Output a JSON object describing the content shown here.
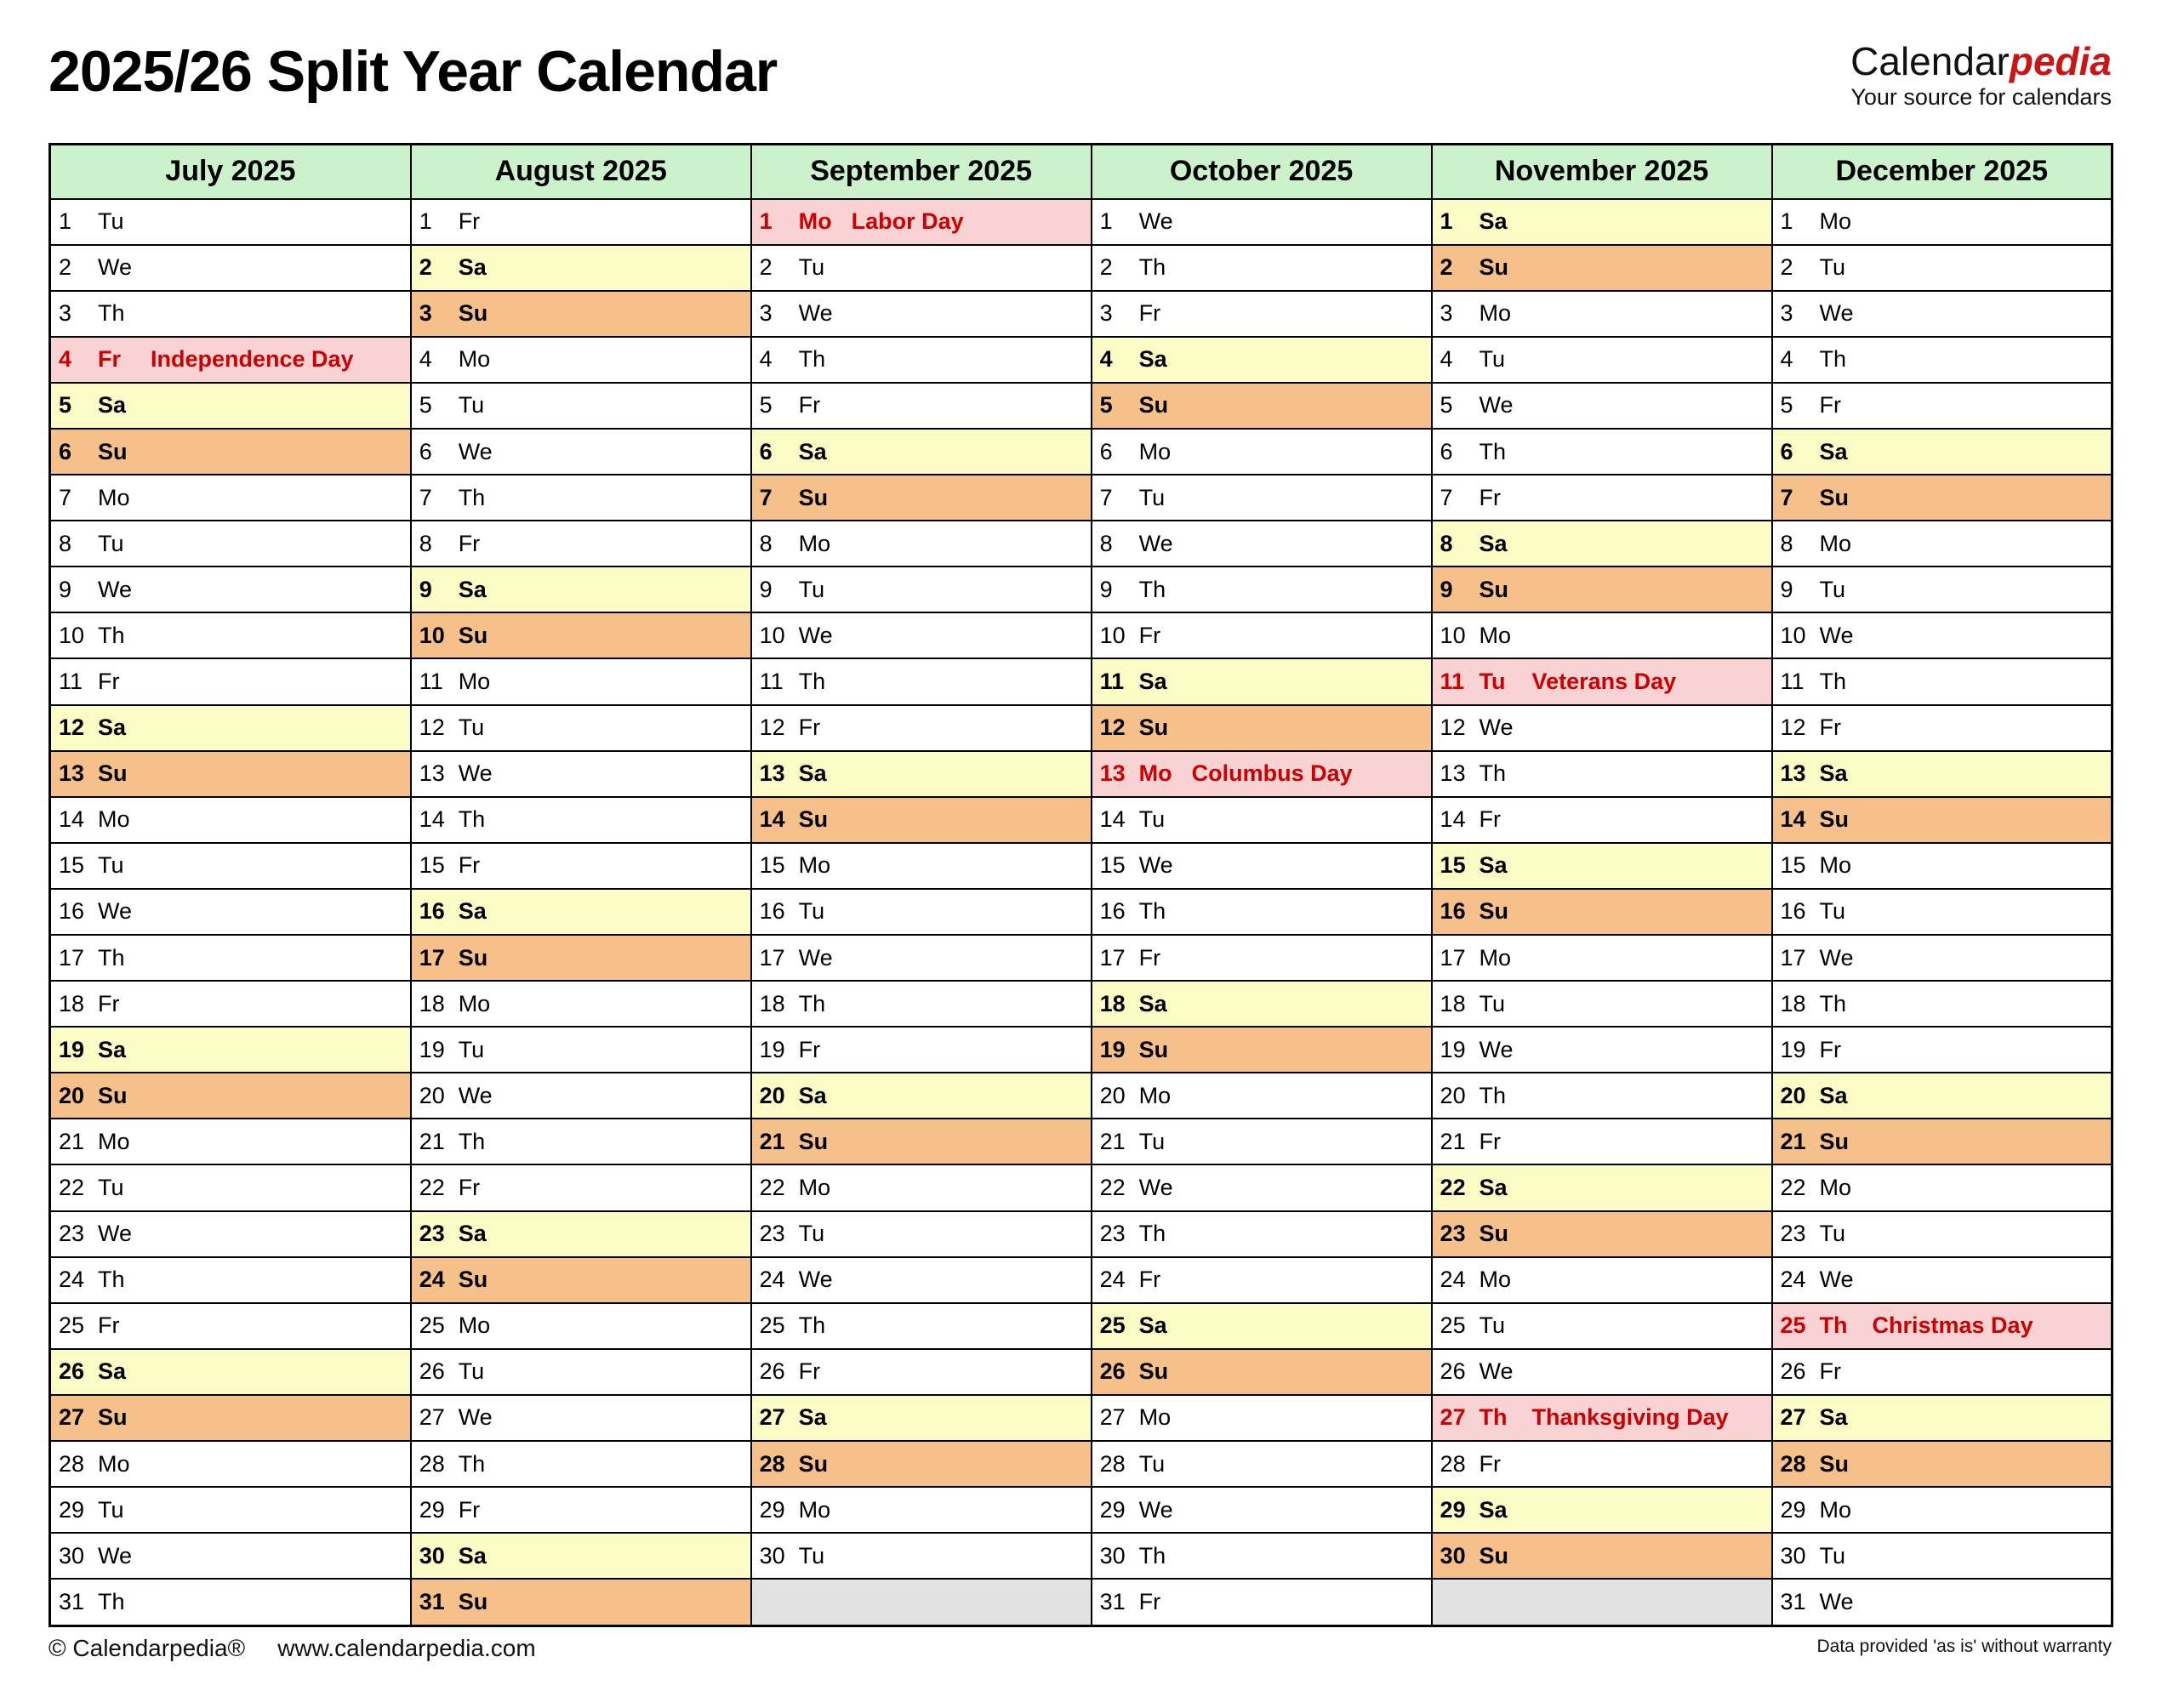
{
  "header": {
    "title": "2025/26 Split Year Calendar",
    "logo": {
      "part1": "Calendar",
      "part2": "pedia",
      "tagline": "Your source for calendars"
    }
  },
  "calendar": {
    "months": [
      {
        "name": "July 2025",
        "weekdays": [
          "Tu",
          "We",
          "Th",
          "Fr",
          "Sa",
          "Su",
          "Mo",
          "Tu",
          "We",
          "Th",
          "Fr",
          "Sa",
          "Su",
          "Mo",
          "Tu",
          "We",
          "Th",
          "Fr",
          "Sa",
          "Su",
          "Mo",
          "Tu",
          "We",
          "Th",
          "Fr",
          "Sa",
          "Su",
          "Mo",
          "Tu",
          "We",
          "Th"
        ],
        "holidays": {
          "4": "Independence Day"
        }
      },
      {
        "name": "August 2025",
        "weekdays": [
          "Fr",
          "Sa",
          "Su",
          "Mo",
          "Tu",
          "We",
          "Th",
          "Fr",
          "Sa",
          "Su",
          "Mo",
          "Tu",
          "We",
          "Th",
          "Fr",
          "Sa",
          "Su",
          "Mo",
          "Tu",
          "We",
          "Th",
          "Fr",
          "Sa",
          "Su",
          "Mo",
          "Tu",
          "We",
          "Th",
          "Fr",
          "Sa",
          "Su"
        ],
        "holidays": {}
      },
      {
        "name": "September 2025",
        "weekdays": [
          "Mo",
          "Tu",
          "We",
          "Th",
          "Fr",
          "Sa",
          "Su",
          "Mo",
          "Tu",
          "We",
          "Th",
          "Fr",
          "Sa",
          "Su",
          "Mo",
          "Tu",
          "We",
          "Th",
          "Fr",
          "Sa",
          "Su",
          "Mo",
          "Tu",
          "We",
          "Th",
          "Fr",
          "Sa",
          "Su",
          "Mo",
          "Tu"
        ],
        "holidays": {
          "1": "Labor Day"
        }
      },
      {
        "name": "October 2025",
        "weekdays": [
          "We",
          "Th",
          "Fr",
          "Sa",
          "Su",
          "Mo",
          "Tu",
          "We",
          "Th",
          "Fr",
          "Sa",
          "Su",
          "Mo",
          "Tu",
          "We",
          "Th",
          "Fr",
          "Sa",
          "Su",
          "Mo",
          "Tu",
          "We",
          "Th",
          "Fr",
          "Sa",
          "Su",
          "Mo",
          "Tu",
          "We",
          "Th",
          "Fr"
        ],
        "holidays": {
          "13": "Columbus Day"
        }
      },
      {
        "name": "November 2025",
        "weekdays": [
          "Sa",
          "Su",
          "Mo",
          "Tu",
          "We",
          "Th",
          "Fr",
          "Sa",
          "Su",
          "Mo",
          "Tu",
          "We",
          "Th",
          "Fr",
          "Sa",
          "Su",
          "Mo",
          "Tu",
          "We",
          "Th",
          "Fr",
          "Sa",
          "Su",
          "Mo",
          "Tu",
          "We",
          "Th",
          "Fr",
          "Sa",
          "Su"
        ],
        "holidays": {
          "11": "Veterans Day",
          "27": "Thanksgiving Day"
        }
      },
      {
        "name": "December 2025",
        "weekdays": [
          "Mo",
          "Tu",
          "We",
          "Th",
          "Fr",
          "Sa",
          "Su",
          "Mo",
          "Tu",
          "We",
          "Th",
          "Fr",
          "Sa",
          "Su",
          "Mo",
          "Tu",
          "We",
          "Th",
          "Fr",
          "Sa",
          "Su",
          "Mo",
          "Tu",
          "We",
          "Th",
          "Fr",
          "Sa",
          "Su",
          "Mo",
          "Tu",
          "We"
        ],
        "holidays": {
          "25": "Christmas Day"
        }
      }
    ],
    "total_rows": 31
  },
  "footer": {
    "copyright": "© Calendarpedia®",
    "url": "www.calendarpedia.com",
    "disclaimer": "Data provided 'as is' without warranty"
  },
  "colors": {
    "header_green": "#ccf2cc",
    "saturday_yellow": "#fbfbc6",
    "sunday_orange": "#f6c08b",
    "holiday_pink": "#f9d2d4",
    "holiday_red": "#cc0000",
    "empty_gray": "#e2e2e2",
    "logo_red": "#cc1414",
    "border_black": "#000000"
  }
}
